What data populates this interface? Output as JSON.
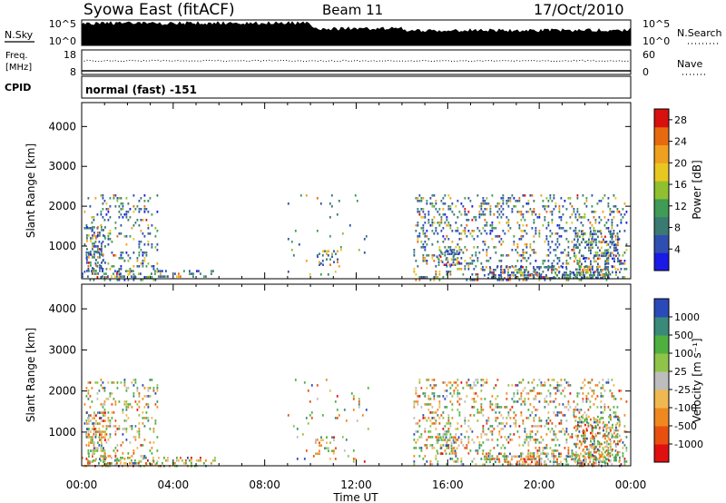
{
  "header": {
    "station": "Syowa East (fitACF)",
    "beam": "Beam 11",
    "date": "17/Oct/2010"
  },
  "status_panels": {
    "nsky_label": "N.Sky",
    "nsearch_label": "N.Search",
    "noise_ticks": [
      "10^5",
      "10^0"
    ],
    "freq_label_line1": "Freq.",
    "freq_label_line2": "[MHz]",
    "freq_ticks": [
      "18",
      "8"
    ],
    "nave_label": "Nave",
    "nave_ticks": [
      "60",
      "0"
    ],
    "cpid_label": "CPID",
    "cpid_value": "normal (fast) -151"
  },
  "colors": {
    "power_scale": [
      "#1a1ae6",
      "#2f4fb0",
      "#3a7a72",
      "#3f9b55",
      "#90c030",
      "#e8c820",
      "#f0a020",
      "#e86a10",
      "#d81010"
    ],
    "velocity_scale": [
      "#e01010",
      "#e85010",
      "#f08820",
      "#f0b850",
      "#bdbdbd",
      "#90c448",
      "#4fb040",
      "#3a8a7a",
      "#2a4aba"
    ]
  },
  "chart_data": [
    {
      "type": "heatmap",
      "quantity": "power",
      "xlabel": "",
      "ylabel": "Slant Range [km]",
      "xlim": [
        "00:00",
        "24:00"
      ],
      "ylim": [
        180,
        4600
      ],
      "x_ticks": [
        "00:00",
        "04:00",
        "08:00",
        "12:00",
        "16:00",
        "20:00",
        "00:00"
      ],
      "y_ticks": [
        1000,
        2000,
        3000,
        4000
      ],
      "colorbar_label": "Power [dB]",
      "colorbar_ticks": [
        "4",
        "8",
        "12",
        "16",
        "20",
        "24",
        "28"
      ],
      "colorbar_range": [
        0,
        30
      ],
      "echo_regions": [
        {
          "t_start": 0.1,
          "t_end": 3.3,
          "range_start": 180,
          "range_end": 2300,
          "density": 0.35
        },
        {
          "t_start": 0.2,
          "t_end": 1.0,
          "range_start": 300,
          "range_end": 1500,
          "density": 0.75
        },
        {
          "t_start": 0.0,
          "t_end": 5.8,
          "range_start": 200,
          "range_end": 400,
          "density": 0.6
        },
        {
          "t_start": 9.0,
          "t_end": 12.5,
          "range_start": 300,
          "range_end": 2300,
          "density": 0.06
        },
        {
          "t_start": 10.2,
          "t_end": 11.2,
          "range_start": 500,
          "range_end": 900,
          "density": 0.5
        },
        {
          "t_start": 14.5,
          "t_end": 23.8,
          "range_start": 180,
          "range_end": 2300,
          "density": 0.4
        },
        {
          "t_start": 15.5,
          "t_end": 16.5,
          "range_start": 500,
          "range_end": 900,
          "density": 0.8
        },
        {
          "t_start": 17.5,
          "t_end": 23.0,
          "range_start": 180,
          "range_end": 500,
          "density": 0.8
        },
        {
          "t_start": 21.5,
          "t_end": 23.5,
          "range_start": 200,
          "range_end": 1400,
          "density": 0.7
        }
      ]
    },
    {
      "type": "heatmap",
      "quantity": "velocity",
      "xlabel": "Time UT",
      "ylabel": "Slant Range [km]",
      "xlim": [
        "00:00",
        "24:00"
      ],
      "ylim": [
        180,
        4600
      ],
      "x_ticks": [
        "00:00",
        "04:00",
        "08:00",
        "12:00",
        "16:00",
        "20:00",
        "00:00"
      ],
      "y_ticks": [
        1000,
        2000,
        3000,
        4000
      ],
      "colorbar_label": "Velocity [m s⁻¹]",
      "colorbar_ticks": [
        "1000",
        "500",
        "100",
        "25",
        "-25",
        "-100",
        "-500",
        "-1000"
      ],
      "echo_regions": [
        {
          "t_start": 0.1,
          "t_end": 3.3,
          "range_start": 180,
          "range_end": 2300,
          "density": 0.35
        },
        {
          "t_start": 0.2,
          "t_end": 1.0,
          "range_start": 300,
          "range_end": 1500,
          "density": 0.75
        },
        {
          "t_start": 0.0,
          "t_end": 5.8,
          "range_start": 200,
          "range_end": 400,
          "density": 0.6
        },
        {
          "t_start": 9.0,
          "t_end": 12.5,
          "range_start": 300,
          "range_end": 2300,
          "density": 0.06
        },
        {
          "t_start": 10.2,
          "t_end": 11.2,
          "range_start": 500,
          "range_end": 900,
          "density": 0.5
        },
        {
          "t_start": 14.5,
          "t_end": 23.8,
          "range_start": 180,
          "range_end": 2300,
          "density": 0.4
        },
        {
          "t_start": 15.5,
          "t_end": 16.5,
          "range_start": 500,
          "range_end": 900,
          "density": 0.8
        },
        {
          "t_start": 17.5,
          "t_end": 23.0,
          "range_start": 180,
          "range_end": 500,
          "density": 0.8
        },
        {
          "t_start": 21.5,
          "t_end": 23.5,
          "range_start": 200,
          "range_end": 1400,
          "density": 0.7
        }
      ]
    }
  ]
}
